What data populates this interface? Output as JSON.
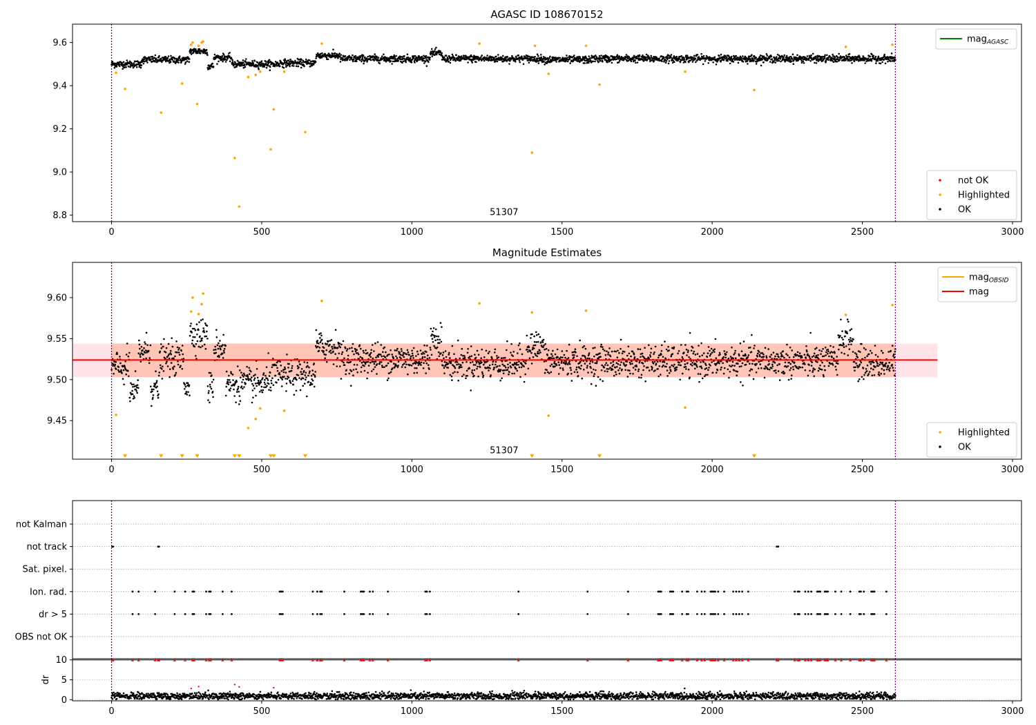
{
  "chart_data": [
    {
      "type": "scatter",
      "title": "AGASC ID 108670152",
      "xlabel": "",
      "ylabel": "",
      "xlim": [
        -130,
        3030
      ],
      "ylim": [
        8.77,
        9.685
      ],
      "xticks": [
        0,
        500,
        1000,
        1500,
        2000,
        2500,
        3000
      ],
      "yticks": [
        8.8,
        9.0,
        9.2,
        9.4,
        9.6
      ],
      "ytick_labels": [
        "8.8",
        "9.0",
        "9.2",
        "9.4",
        "9.6"
      ],
      "vlines": [
        0,
        2610
      ],
      "vline_color": "#800080",
      "annotation": {
        "text": "51307",
        "x": 1307,
        "y": 8.8
      },
      "ok_series": {
        "x_start": 0,
        "x_end": 2610,
        "count": 2600,
        "base": 9.52,
        "noise": 0.012
      },
      "segments": [
        {
          "x0": 0,
          "x1": 100,
          "mean": 9.5
        },
        {
          "x0": 100,
          "x1": 260,
          "mean": 9.52
        },
        {
          "x0": 260,
          "x1": 320,
          "mean": 9.56
        },
        {
          "x0": 320,
          "x1": 340,
          "mean": 9.49
        },
        {
          "x0": 340,
          "x1": 400,
          "mean": 9.53
        },
        {
          "x0": 400,
          "x1": 560,
          "mean": 9.5
        },
        {
          "x0": 560,
          "x1": 680,
          "mean": 9.505
        },
        {
          "x0": 680,
          "x1": 760,
          "mean": 9.54
        },
        {
          "x0": 760,
          "x1": 1060,
          "mean": 9.525
        },
        {
          "x0": 1060,
          "x1": 1100,
          "mean": 9.55
        },
        {
          "x0": 1100,
          "x1": 1440,
          "mean": 9.525
        },
        {
          "x0": 1440,
          "x1": 1600,
          "mean": 9.52
        },
        {
          "x0": 1600,
          "x1": 2610,
          "mean": 9.525
        }
      ],
      "highlighted": {
        "color": "#FFA500",
        "points": [
          [
            15,
            9.46
          ],
          [
            45,
            9.385
          ],
          [
            165,
            9.275
          ],
          [
            235,
            9.41
          ],
          [
            265,
            9.59
          ],
          [
            270,
            9.6
          ],
          [
            285,
            9.315
          ],
          [
            290,
            9.585
          ],
          [
            300,
            9.6
          ],
          [
            305,
            9.605
          ],
          [
            410,
            9.065
          ],
          [
            425,
            8.84
          ],
          [
            455,
            9.44
          ],
          [
            480,
            9.45
          ],
          [
            495,
            9.465
          ],
          [
            530,
            9.105
          ],
          [
            540,
            9.29
          ],
          [
            575,
            9.465
          ],
          [
            645,
            9.185
          ],
          [
            700,
            9.595
          ],
          [
            1225,
            9.595
          ],
          [
            1400,
            9.09
          ],
          [
            1410,
            9.585
          ],
          [
            1455,
            9.455
          ],
          [
            1580,
            9.585
          ],
          [
            1625,
            9.405
          ],
          [
            1910,
            9.465
          ],
          [
            2140,
            9.38
          ],
          [
            2445,
            9.58
          ],
          [
            2600,
            9.59
          ]
        ]
      },
      "legend_top": [
        {
          "label": "mag",
          "sub": "AGASC",
          "color": "#008000",
          "marker": "line"
        }
      ],
      "legend_bottom": [
        {
          "label": "not OK",
          "color": "#FF0000",
          "marker": "dot"
        },
        {
          "label": "Highlighted",
          "color": "#FFA500",
          "marker": "dot"
        },
        {
          "label": "OK",
          "color": "#000000",
          "marker": "dot"
        }
      ]
    },
    {
      "type": "scatter",
      "title": "Magnitude Estimates",
      "xlabel": "",
      "ylabel": "",
      "xlim": [
        -130,
        3030
      ],
      "ylim": [
        9.403,
        9.643
      ],
      "xticks": [
        0,
        500,
        1000,
        1500,
        2000,
        2500,
        3000
      ],
      "yticks": [
        9.45,
        9.5,
        9.55,
        9.6
      ],
      "ytick_labels": [
        "9.45",
        "9.50",
        "9.55",
        "9.60"
      ],
      "vlines": [
        0,
        2610
      ],
      "vline_color": "#800080",
      "annotation": {
        "text": "51307",
        "x": 1307,
        "y": 9.41
      },
      "mag_line": {
        "value": 9.524,
        "color": "#FF0000",
        "x0": -130,
        "x1": 2750
      },
      "band_outer": {
        "y0": 9.503,
        "y1": 9.544,
        "x0": -130,
        "x1": 2750,
        "color": "#FFC0CB"
      },
      "band_inner": {
        "y0": 9.503,
        "y1": 9.544,
        "x0": 0,
        "x1": 2610,
        "color": "#FFA07A"
      },
      "ok_series": {
        "x_start": 0,
        "x_end": 2610,
        "count": 2200,
        "base": 9.523,
        "noise": 0.014
      },
      "segments": [
        {
          "x0": 0,
          "x1": 60,
          "mean": 9.515
        },
        {
          "x0": 60,
          "x1": 90,
          "mean": 9.485
        },
        {
          "x0": 90,
          "x1": 130,
          "mean": 9.535
        },
        {
          "x0": 130,
          "x1": 160,
          "mean": 9.49
        },
        {
          "x0": 160,
          "x1": 240,
          "mean": 9.525
        },
        {
          "x0": 240,
          "x1": 260,
          "mean": 9.495
        },
        {
          "x0": 260,
          "x1": 320,
          "mean": 9.555
        },
        {
          "x0": 320,
          "x1": 340,
          "mean": 9.49
        },
        {
          "x0": 340,
          "x1": 380,
          "mean": 9.54
        },
        {
          "x0": 380,
          "x1": 520,
          "mean": 9.495
        },
        {
          "x0": 520,
          "x1": 680,
          "mean": 9.505
        },
        {
          "x0": 680,
          "x1": 760,
          "mean": 9.54
        },
        {
          "x0": 760,
          "x1": 1060,
          "mean": 9.525
        },
        {
          "x0": 1060,
          "x1": 1100,
          "mean": 9.55
        },
        {
          "x0": 1100,
          "x1": 1380,
          "mean": 9.52
        },
        {
          "x0": 1380,
          "x1": 1440,
          "mean": 9.54
        },
        {
          "x0": 1440,
          "x1": 2420,
          "mean": 9.522
        },
        {
          "x0": 2420,
          "x1": 2470,
          "mean": 9.55
        },
        {
          "x0": 2470,
          "x1": 2610,
          "mean": 9.52
        }
      ],
      "highlighted": {
        "color": "#FFA500",
        "points": [
          [
            15,
            9.457
          ],
          [
            265,
            9.583
          ],
          [
            270,
            9.6
          ],
          [
            290,
            9.58
          ],
          [
            300,
            9.592
          ],
          [
            305,
            9.605
          ],
          [
            455,
            9.441
          ],
          [
            480,
            9.452
          ],
          [
            495,
            9.465
          ],
          [
            575,
            9.462
          ],
          [
            700,
            9.596
          ],
          [
            1225,
            9.593
          ],
          [
            1400,
            9.582
          ],
          [
            1455,
            9.456
          ],
          [
            1580,
            9.584
          ],
          [
            1910,
            9.466
          ],
          [
            2445,
            9.579
          ],
          [
            2600,
            9.591
          ]
        ]
      },
      "highlighted_offscale": {
        "color": "#FFA500",
        "x": [
          45,
          165,
          235,
          285,
          410,
          425,
          530,
          540,
          645,
          1400,
          1625,
          2140
        ]
      },
      "legend_top": [
        {
          "label": "mag",
          "sub": "OBSID",
          "color": "#FFA500",
          "marker": "line"
        },
        {
          "label": "mag",
          "sub": "",
          "color": "#FF0000",
          "marker": "line"
        }
      ],
      "legend_bottom": [
        {
          "label": "Highlighted",
          "color": "#FFA500",
          "marker": "dot"
        },
        {
          "label": "OK",
          "color": "#000000",
          "marker": "dot"
        }
      ]
    },
    {
      "type": "scatter",
      "title": "",
      "xlabel": "",
      "ylabel": "",
      "xlim": [
        -130,
        3030
      ],
      "categories": [
        "not Kalman",
        "not track",
        "Sat. pixel.",
        "Ion. rad.",
        "dr > 5",
        "OBS not OK"
      ],
      "vlines": [
        0,
        2610
      ],
      "vline_color": "#800080",
      "flags": {
        "not track": [
          2,
          5,
          155,
          158,
          2215,
          2220
        ],
        "Ion. rad.": [
          70,
          90,
          145,
          210,
          245,
          270,
          275,
          315,
          325,
          330,
          370,
          400,
          560,
          565,
          570,
          670,
          685,
          695,
          700,
          775,
          830,
          835,
          840,
          860,
          870,
          920,
          1045,
          1050,
          1060,
          1355,
          1585,
          1720,
          1820,
          1825,
          1830,
          1860,
          1865,
          1870,
          1900,
          1915,
          1920,
          1950,
          1965,
          1975,
          1995,
          2000,
          2005,
          2010,
          2020,
          2040,
          2070,
          2080,
          2090,
          2100,
          2120,
          2275,
          2285,
          2290,
          2310,
          2320,
          2330,
          2350,
          2355,
          2360,
          2375,
          2380,
          2385,
          2410,
          2430,
          2460,
          2490,
          2495,
          2505,
          2530,
          2535,
          2540,
          2580
        ],
        "dr > 5": [
          70,
          90,
          145,
          210,
          245,
          270,
          275,
          315,
          325,
          330,
          370,
          400,
          560,
          565,
          570,
          670,
          685,
          695,
          700,
          775,
          830,
          835,
          840,
          860,
          870,
          920,
          1045,
          1050,
          1060,
          1355,
          1585,
          1720,
          1820,
          1825,
          1830,
          1860,
          1865,
          1870,
          1900,
          1915,
          1920,
          1950,
          1965,
          1975,
          1995,
          2000,
          2005,
          2010,
          2020,
          2040,
          2070,
          2080,
          2090,
          2100,
          2120,
          2275,
          2285,
          2290,
          2310,
          2320,
          2330,
          2350,
          2355,
          2360,
          2375,
          2380,
          2385,
          2410,
          2430,
          2460,
          2490,
          2495,
          2505,
          2530,
          2535,
          2540,
          2580
        ]
      }
    },
    {
      "type": "scatter",
      "title": "",
      "xlabel": "",
      "ylabel": "dr",
      "xlim": [
        -130,
        3030
      ],
      "ylim": [
        -0.3,
        10.3
      ],
      "xticks": [
        0,
        500,
        1000,
        1500,
        2000,
        2500,
        3000
      ],
      "yticks": [
        0,
        5,
        10
      ],
      "ytick_labels": [
        "0",
        "5",
        "10"
      ],
      "vlines": [
        0,
        2610
      ],
      "vline_color": "#800080",
      "hline": 10,
      "dr_series": {
        "x_start": 0,
        "x_end": 2610,
        "count": 2400,
        "base": 0.9,
        "noise": 0.45
      },
      "capped_color": "#FF0000",
      "capped_x": [
        2,
        5,
        70,
        90,
        145,
        155,
        158,
        210,
        245,
        270,
        275,
        315,
        325,
        330,
        370,
        400,
        560,
        565,
        570,
        670,
        685,
        695,
        700,
        775,
        830,
        835,
        840,
        860,
        870,
        920,
        1045,
        1050,
        1060,
        1355,
        1585,
        1720,
        1820,
        1825,
        1830,
        1860,
        1865,
        1870,
        1900,
        1915,
        1920,
        1950,
        1965,
        1975,
        1995,
        2000,
        2005,
        2010,
        2020,
        2040,
        2070,
        2080,
        2090,
        2100,
        2120,
        2215,
        2220,
        2275,
        2285,
        2290,
        2310,
        2320,
        2330,
        2350,
        2355,
        2360,
        2375,
        2380,
        2385,
        2410,
        2430,
        2460,
        2490,
        2495,
        2505,
        2530,
        2535,
        2540,
        2580
      ],
      "red_points": [
        [
          265,
          2.8
        ],
        [
          290,
          3.3
        ],
        [
          410,
          3.8
        ],
        [
          425,
          3.2
        ],
        [
          540,
          3.0
        ]
      ]
    }
  ]
}
